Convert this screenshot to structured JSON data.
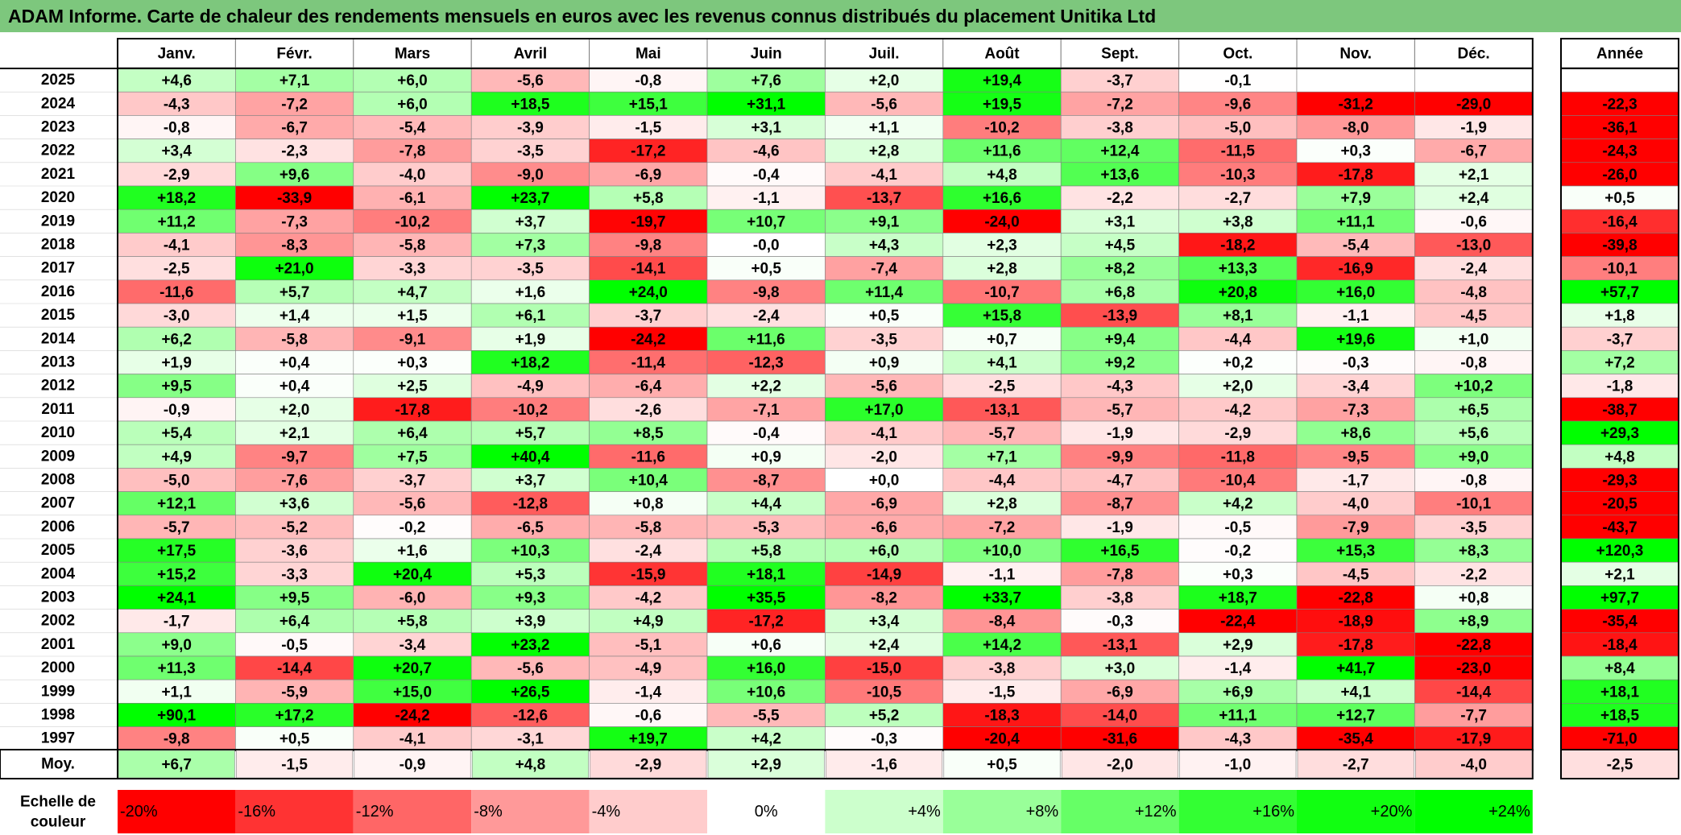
{
  "title": "ADAM Informe. Carte de chaleur des rendements mensuels en euros avec les revenus connus distribués du placement Unitika Ltd",
  "chart_data": {
    "type": "heatmap",
    "columns": [
      "Janv.",
      "Févr.",
      "Mars",
      "Avril",
      "Mai",
      "Juin",
      "Juil.",
      "Août",
      "Sept.",
      "Oct.",
      "Nov.",
      "Déc."
    ],
    "year_label": "Année",
    "rows": [
      {
        "year": "2025",
        "values": [
          "+4,6",
          "+7,1",
          "+6,0",
          "-5,6",
          "-0,8",
          "+7,6",
          "+2,0",
          "+19,4",
          "-3,7",
          "-0,1",
          "",
          ""
        ],
        "annual": ""
      },
      {
        "year": "2024",
        "values": [
          "-4,3",
          "-7,2",
          "+6,0",
          "+18,5",
          "+15,1",
          "+31,1",
          "-5,6",
          "+19,5",
          "-7,2",
          "-9,6",
          "-31,2",
          "-29,0"
        ],
        "annual": "-22,3"
      },
      {
        "year": "2023",
        "values": [
          "-0,8",
          "-6,7",
          "-5,4",
          "-3,9",
          "-1,5",
          "+3,1",
          "+1,1",
          "-10,2",
          "-3,8",
          "-5,0",
          "-8,0",
          "-1,9"
        ],
        "annual": "-36,1"
      },
      {
        "year": "2022",
        "values": [
          "+3,4",
          "-2,3",
          "-7,8",
          "-3,5",
          "-17,2",
          "-4,6",
          "+2,8",
          "+11,6",
          "+12,4",
          "-11,5",
          "+0,3",
          "-6,7"
        ],
        "annual": "-24,3"
      },
      {
        "year": "2021",
        "values": [
          "-2,9",
          "+9,6",
          "-4,0",
          "-9,0",
          "-6,9",
          "-0,4",
          "-4,1",
          "+4,8",
          "+13,6",
          "-10,3",
          "-17,8",
          "+2,1"
        ],
        "annual": "-26,0"
      },
      {
        "year": "2020",
        "values": [
          "+18,2",
          "-33,9",
          "-6,1",
          "+23,7",
          "+5,8",
          "-1,1",
          "-13,7",
          "+16,6",
          "-2,2",
          "-2,7",
          "+7,9",
          "+2,4"
        ],
        "annual": "+0,5"
      },
      {
        "year": "2019",
        "values": [
          "+11,2",
          "-7,3",
          "-10,2",
          "+3,7",
          "-19,7",
          "+10,7",
          "+9,1",
          "-24,0",
          "+3,1",
          "+3,8",
          "+11,1",
          "-0,6"
        ],
        "annual": "-16,4"
      },
      {
        "year": "2018",
        "values": [
          "-4,1",
          "-8,3",
          "-5,8",
          "+7,3",
          "-9,8",
          "-0,0",
          "+4,3",
          "+2,3",
          "+4,5",
          "-18,2",
          "-5,4",
          "-13,0"
        ],
        "annual": "-39,8"
      },
      {
        "year": "2017",
        "values": [
          "-2,5",
          "+21,0",
          "-3,3",
          "-3,5",
          "-14,1",
          "+0,5",
          "-7,4",
          "+2,8",
          "+8,2",
          "+13,3",
          "-16,9",
          "-2,4"
        ],
        "annual": "-10,1"
      },
      {
        "year": "2016",
        "values": [
          "-11,6",
          "+5,7",
          "+4,7",
          "+1,6",
          "+24,0",
          "-9,8",
          "+11,4",
          "-10,7",
          "+6,8",
          "+20,8",
          "+16,0",
          "-4,8"
        ],
        "annual": "+57,7"
      },
      {
        "year": "2015",
        "values": [
          "-3,0",
          "+1,4",
          "+1,5",
          "+6,1",
          "-3,7",
          "-2,4",
          "+0,5",
          "+15,8",
          "-13,9",
          "+8,1",
          "-1,1",
          "-4,5"
        ],
        "annual": "+1,8"
      },
      {
        "year": "2014",
        "values": [
          "+6,2",
          "-5,8",
          "-9,1",
          "+1,9",
          "-24,2",
          "+11,6",
          "-3,5",
          "+0,7",
          "+9,4",
          "-4,4",
          "+19,6",
          "+1,0"
        ],
        "annual": "-3,7"
      },
      {
        "year": "2013",
        "values": [
          "+1,9",
          "+0,4",
          "+0,3",
          "+18,2",
          "-11,4",
          "-12,3",
          "+0,9",
          "+4,1",
          "+9,2",
          "+0,2",
          "-0,3",
          "-0,8"
        ],
        "annual": "+7,2"
      },
      {
        "year": "2012",
        "values": [
          "+9,5",
          "+0,4",
          "+2,5",
          "-4,9",
          "-6,4",
          "+2,2",
          "-5,6",
          "-2,5",
          "-4,3",
          "+2,0",
          "-3,4",
          "+10,2"
        ],
        "annual": "-1,8"
      },
      {
        "year": "2011",
        "values": [
          "-0,9",
          "+2,0",
          "-17,8",
          "-10,2",
          "-2,6",
          "-7,1",
          "+17,0",
          "-13,1",
          "-5,7",
          "-4,2",
          "-7,3",
          "+6,5"
        ],
        "annual": "-38,7"
      },
      {
        "year": "2010",
        "values": [
          "+5,4",
          "+2,1",
          "+6,4",
          "+5,7",
          "+8,5",
          "-0,4",
          "-4,1",
          "-5,7",
          "-1,9",
          "-2,9",
          "+8,6",
          "+5,6"
        ],
        "annual": "+29,3"
      },
      {
        "year": "2009",
        "values": [
          "+4,9",
          "-9,7",
          "+7,5",
          "+40,4",
          "-11,6",
          "+0,9",
          "-2,0",
          "+7,1",
          "-9,9",
          "-11,8",
          "-9,5",
          "+9,0"
        ],
        "annual": "+4,8"
      },
      {
        "year": "2008",
        "values": [
          "-5,0",
          "-7,6",
          "-3,7",
          "+3,7",
          "+10,4",
          "-8,7",
          "+0,0",
          "-4,4",
          "-4,7",
          "-10,4",
          "-1,7",
          "-0,8"
        ],
        "annual": "-29,3"
      },
      {
        "year": "2007",
        "values": [
          "+12,1",
          "+3,6",
          "-5,6",
          "-12,8",
          "+0,8",
          "+4,4",
          "-6,9",
          "+2,8",
          "-8,7",
          "+4,2",
          "-4,0",
          "-10,1"
        ],
        "annual": "-20,5"
      },
      {
        "year": "2006",
        "values": [
          "-5,7",
          "-5,2",
          "-0,2",
          "-6,5",
          "-5,8",
          "-5,3",
          "-6,6",
          "-7,2",
          "-1,9",
          "-0,5",
          "-7,9",
          "-3,5"
        ],
        "annual": "-43,7"
      },
      {
        "year": "2005",
        "values": [
          "+17,5",
          "-3,6",
          "+1,6",
          "+10,3",
          "-2,4",
          "+5,8",
          "+6,0",
          "+10,0",
          "+16,5",
          "-0,2",
          "+15,3",
          "+8,3"
        ],
        "annual": "+120,3"
      },
      {
        "year": "2004",
        "values": [
          "+15,2",
          "-3,3",
          "+20,4",
          "+5,3",
          "-15,9",
          "+18,1",
          "-14,9",
          "-1,1",
          "-7,8",
          "+0,3",
          "-4,5",
          "-2,2"
        ],
        "annual": "+2,1"
      },
      {
        "year": "2003",
        "values": [
          "+24,1",
          "+9,5",
          "-6,0",
          "+9,3",
          "-4,2",
          "+35,5",
          "-8,2",
          "+33,7",
          "-3,8",
          "+18,7",
          "-22,8",
          "+0,8"
        ],
        "annual": "+97,7"
      },
      {
        "year": "2002",
        "values": [
          "-1,7",
          "+6,4",
          "+5,8",
          "+3,9",
          "+4,9",
          "-17,2",
          "+3,4",
          "-8,4",
          "-0,3",
          "-22,4",
          "-18,9",
          "+8,9"
        ],
        "annual": "-35,4"
      },
      {
        "year": "2001",
        "values": [
          "+9,0",
          "-0,5",
          "-3,4",
          "+23,2",
          "-5,1",
          "+0,6",
          "+2,4",
          "+14,2",
          "-13,1",
          "+2,9",
          "-17,8",
          "-22,8"
        ],
        "annual": "-18,4"
      },
      {
        "year": "2000",
        "values": [
          "+11,3",
          "-14,4",
          "+20,7",
          "-5,6",
          "-4,9",
          "+16,0",
          "-15,0",
          "-3,8",
          "+3,0",
          "-1,4",
          "+41,7",
          "-23,0"
        ],
        "annual": "+8,4"
      },
      {
        "year": "1999",
        "values": [
          "+1,1",
          "-5,9",
          "+15,0",
          "+26,5",
          "-1,4",
          "+10,6",
          "-10,5",
          "-1,5",
          "-6,9",
          "+6,9",
          "+4,1",
          "-14,4"
        ],
        "annual": "+18,1"
      },
      {
        "year": "1998",
        "values": [
          "+90,1",
          "+17,2",
          "-24,2",
          "-12,6",
          "-0,6",
          "-5,5",
          "+5,2",
          "-18,3",
          "-14,0",
          "+11,1",
          "+12,7",
          "-7,7"
        ],
        "annual": "+18,5"
      },
      {
        "year": "1997",
        "values": [
          "-9,8",
          "+0,5",
          "-4,1",
          "-3,1",
          "+19,7",
          "+4,2",
          "-0,3",
          "-20,4",
          "-31,6",
          "-4,3",
          "-35,4",
          "-17,9"
        ],
        "annual": "-71,0"
      }
    ],
    "average": {
      "label": "Moy.",
      "values": [
        "+6,7",
        "-1,5",
        "-0,9",
        "+4,8",
        "-2,9",
        "+2,9",
        "-1,6",
        "+0,5",
        "-2,0",
        "-1,0",
        "-2,7",
        "-4,0"
      ],
      "annual": "-2,5"
    },
    "scale": {
      "label_lines": [
        "Echelle de",
        "couleur"
      ],
      "stops": [
        {
          "label": "-20%",
          "value": -20,
          "color": "#ff0000"
        },
        {
          "label": "-16%",
          "value": -16,
          "color": "#ff3333"
        },
        {
          "label": "-12%",
          "value": -12,
          "color": "#ff6666"
        },
        {
          "label": "-8%",
          "value": -8,
          "color": "#ff9999"
        },
        {
          "label": "-4%",
          "value": -4,
          "color": "#ffcccc"
        },
        {
          "label": "0%",
          "value": 0,
          "color": "#ffffff"
        },
        {
          "label": "+4%",
          "value": 4,
          "color": "#ccffcc"
        },
        {
          "label": "+8%",
          "value": 8,
          "color": "#99ff99"
        },
        {
          "label": "+12%",
          "value": 12,
          "color": "#66ff66"
        },
        {
          "label": "+16%",
          "value": 16,
          "color": "#33ff33"
        },
        {
          "label": "+20%",
          "value": 20,
          "color": "#11ff11"
        },
        {
          "label": "+24%",
          "value": 24,
          "color": "#00ff00"
        }
      ]
    }
  }
}
